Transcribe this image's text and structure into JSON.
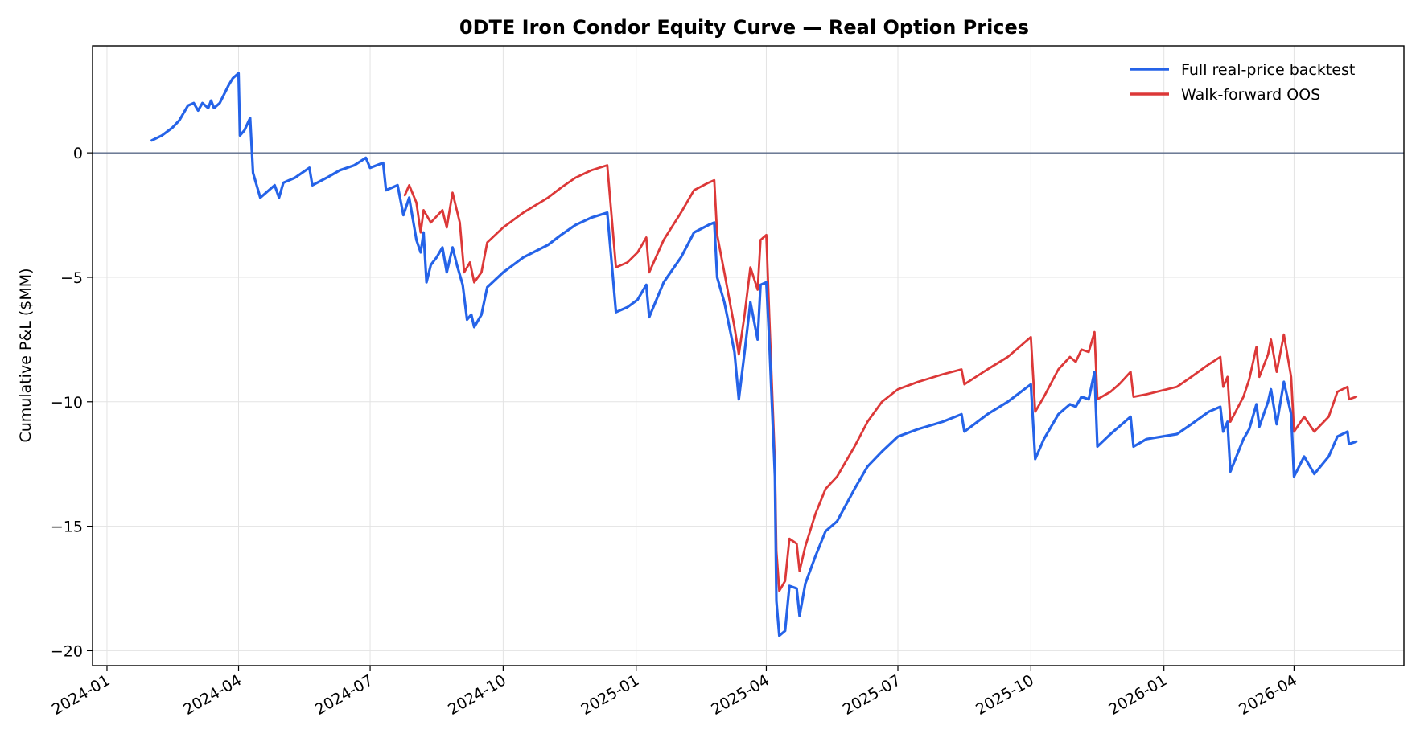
{
  "chart_data": {
    "type": "line",
    "title": "0DTE Iron Condor Equity Curve — Real Option Prices",
    "xlabel": "",
    "ylabel": "Cumulative P&L ($MM)",
    "xlim": [
      "2023-12-22",
      "2026-06-16"
    ],
    "ylim": [
      -20.6,
      4.3
    ],
    "x_ticks": [
      "2024-01",
      "2024-04",
      "2024-07",
      "2024-10",
      "2025-01",
      "2025-04",
      "2025-07",
      "2025-10",
      "2026-01",
      "2026-04"
    ],
    "y_ticks": [
      0,
      -5,
      -10,
      -15,
      -20
    ],
    "y_tick_labels": [
      "0",
      "−5",
      "−10",
      "−15",
      "−20"
    ],
    "grid": true,
    "reference_line": 0,
    "reference_line_color": "#5a6a88",
    "legend_position": "top-right",
    "series": [
      {
        "name": "Full real-price backtest",
        "color": "#2563e8",
        "points": [
          [
            "2024-02-01",
            0.5
          ],
          [
            "2024-02-08",
            0.7
          ],
          [
            "2024-02-15",
            1.0
          ],
          [
            "2024-02-20",
            1.3
          ],
          [
            "2024-02-26",
            1.9
          ],
          [
            "2024-03-01",
            2.0
          ],
          [
            "2024-03-04",
            1.7
          ],
          [
            "2024-03-07",
            2.0
          ],
          [
            "2024-03-11",
            1.8
          ],
          [
            "2024-03-13",
            2.1
          ],
          [
            "2024-03-15",
            1.8
          ],
          [
            "2024-03-19",
            2.0
          ],
          [
            "2024-03-25",
            2.7
          ],
          [
            "2024-03-28",
            3.0
          ],
          [
            "2024-04-01",
            3.2
          ],
          [
            "2024-04-02",
            0.7
          ],
          [
            "2024-04-05",
            0.9
          ],
          [
            "2024-04-09",
            1.4
          ],
          [
            "2024-04-11",
            -0.8
          ],
          [
            "2024-04-16",
            -1.8
          ],
          [
            "2024-04-22",
            -1.5
          ],
          [
            "2024-04-26",
            -1.3
          ],
          [
            "2024-04-29",
            -1.8
          ],
          [
            "2024-05-02",
            -1.2
          ],
          [
            "2024-05-10",
            -1.0
          ],
          [
            "2024-05-20",
            -0.6
          ],
          [
            "2024-05-22",
            -1.3
          ],
          [
            "2024-06-01",
            -1.0
          ],
          [
            "2024-06-10",
            -0.7
          ],
          [
            "2024-06-20",
            -0.5
          ],
          [
            "2024-06-28",
            -0.2
          ],
          [
            "2024-07-01",
            -0.6
          ],
          [
            "2024-07-10",
            -0.4
          ],
          [
            "2024-07-12",
            -1.5
          ],
          [
            "2024-07-20",
            -1.3
          ],
          [
            "2024-07-24",
            -2.5
          ],
          [
            "2024-07-28",
            -1.8
          ],
          [
            "2024-08-02",
            -3.5
          ],
          [
            "2024-08-05",
            -4.0
          ],
          [
            "2024-08-07",
            -3.2
          ],
          [
            "2024-08-09",
            -5.2
          ],
          [
            "2024-08-12",
            -4.5
          ],
          [
            "2024-08-16",
            -4.2
          ],
          [
            "2024-08-20",
            -3.8
          ],
          [
            "2024-08-23",
            -4.8
          ],
          [
            "2024-08-27",
            -3.8
          ],
          [
            "2024-08-30",
            -4.5
          ],
          [
            "2024-09-03",
            -5.3
          ],
          [
            "2024-09-06",
            -6.7
          ],
          [
            "2024-09-09",
            -6.5
          ],
          [
            "2024-09-11",
            -7.0
          ],
          [
            "2024-09-16",
            -6.5
          ],
          [
            "2024-09-20",
            -5.4
          ],
          [
            "2024-10-01",
            -4.8
          ],
          [
            "2024-10-15",
            -4.2
          ],
          [
            "2024-11-01",
            -3.7
          ],
          [
            "2024-11-10",
            -3.3
          ],
          [
            "2024-11-20",
            -2.9
          ],
          [
            "2024-12-01",
            -2.6
          ],
          [
            "2024-12-12",
            -2.4
          ],
          [
            "2024-12-18",
            -6.4
          ],
          [
            "2024-12-26",
            -6.2
          ],
          [
            "2025-01-02",
            -5.9
          ],
          [
            "2025-01-08",
            -5.3
          ],
          [
            "2025-01-10",
            -6.6
          ],
          [
            "2025-01-20",
            -5.2
          ],
          [
            "2025-02-01",
            -4.2
          ],
          [
            "2025-02-10",
            -3.2
          ],
          [
            "2025-02-20",
            -2.9
          ],
          [
            "2025-02-24",
            -2.8
          ],
          [
            "2025-02-26",
            -5.0
          ],
          [
            "2025-03-03",
            -6.0
          ],
          [
            "2025-03-10",
            -8.0
          ],
          [
            "2025-03-13",
            -9.9
          ],
          [
            "2025-03-17",
            -8.0
          ],
          [
            "2025-03-21",
            -6.0
          ],
          [
            "2025-03-26",
            -7.5
          ],
          [
            "2025-03-28",
            -5.3
          ],
          [
            "2025-04-01",
            -5.2
          ],
          [
            "2025-04-03",
            -7.5
          ],
          [
            "2025-04-07",
            -13.0
          ],
          [
            "2025-04-08",
            -18.0
          ],
          [
            "2025-04-10",
            -19.4
          ],
          [
            "2025-04-14",
            -19.2
          ],
          [
            "2025-04-17",
            -17.4
          ],
          [
            "2025-04-22",
            -17.5
          ],
          [
            "2025-04-24",
            -18.6
          ],
          [
            "2025-04-28",
            -17.3
          ],
          [
            "2025-05-05",
            -16.2
          ],
          [
            "2025-05-12",
            -15.2
          ],
          [
            "2025-05-20",
            -14.8
          ],
          [
            "2025-06-01",
            -13.5
          ],
          [
            "2025-06-10",
            -12.6
          ],
          [
            "2025-06-20",
            -12.0
          ],
          [
            "2025-07-01",
            -11.4
          ],
          [
            "2025-07-15",
            -11.1
          ],
          [
            "2025-08-01",
            -10.8
          ],
          [
            "2025-08-14",
            -10.5
          ],
          [
            "2025-08-16",
            -11.2
          ],
          [
            "2025-09-01",
            -10.5
          ],
          [
            "2025-09-15",
            -10.0
          ],
          [
            "2025-10-01",
            -9.3
          ],
          [
            "2025-10-04",
            -12.3
          ],
          [
            "2025-10-10",
            -11.5
          ],
          [
            "2025-10-20",
            -10.5
          ],
          [
            "2025-10-28",
            -10.1
          ],
          [
            "2025-11-01",
            -10.2
          ],
          [
            "2025-11-05",
            -9.8
          ],
          [
            "2025-11-10",
            -9.9
          ],
          [
            "2025-11-14",
            -8.8
          ],
          [
            "2025-11-16",
            -11.8
          ],
          [
            "2025-11-25",
            -11.3
          ],
          [
            "2025-12-01",
            -11.0
          ],
          [
            "2025-12-09",
            -10.6
          ],
          [
            "2025-12-11",
            -11.8
          ],
          [
            "2025-12-20",
            -11.5
          ],
          [
            "2026-01-10",
            -11.3
          ],
          [
            "2026-01-20",
            -10.9
          ],
          [
            "2026-02-01",
            -10.4
          ],
          [
            "2026-02-09",
            -10.2
          ],
          [
            "2026-02-11",
            -11.2
          ],
          [
            "2026-02-14",
            -10.8
          ],
          [
            "2026-02-16",
            -12.8
          ],
          [
            "2026-02-25",
            -11.5
          ],
          [
            "2026-03-01",
            -11.1
          ],
          [
            "2026-03-06",
            -10.1
          ],
          [
            "2026-03-08",
            -11.0
          ],
          [
            "2026-03-14",
            -10.0
          ],
          [
            "2026-03-16",
            -9.5
          ],
          [
            "2026-03-20",
            -10.9
          ],
          [
            "2026-03-25",
            -9.2
          ],
          [
            "2026-03-30",
            -10.5
          ],
          [
            "2026-04-01",
            -13.0
          ],
          [
            "2026-04-08",
            -12.2
          ],
          [
            "2026-04-15",
            -12.9
          ],
          [
            "2026-04-25",
            -12.2
          ],
          [
            "2026-05-01",
            -11.4
          ],
          [
            "2026-05-08",
            -11.2
          ],
          [
            "2026-05-09",
            -11.7
          ],
          [
            "2026-05-14",
            -11.6
          ]
        ]
      },
      {
        "name": "Walk-forward OOS",
        "color": "#dc3838",
        "points": [
          [
            "2024-07-25",
            -1.7
          ],
          [
            "2024-07-28",
            -1.3
          ],
          [
            "2024-08-02",
            -2.0
          ],
          [
            "2024-08-05",
            -3.2
          ],
          [
            "2024-08-07",
            -2.3
          ],
          [
            "2024-08-12",
            -2.8
          ],
          [
            "2024-08-20",
            -2.3
          ],
          [
            "2024-08-23",
            -3.0
          ],
          [
            "2024-08-27",
            -1.6
          ],
          [
            "2024-09-01",
            -2.8
          ],
          [
            "2024-09-04",
            -4.8
          ],
          [
            "2024-09-08",
            -4.4
          ],
          [
            "2024-09-11",
            -5.2
          ],
          [
            "2024-09-16",
            -4.8
          ],
          [
            "2024-09-20",
            -3.6
          ],
          [
            "2024-10-01",
            -3.0
          ],
          [
            "2024-10-15",
            -2.4
          ],
          [
            "2024-11-01",
            -1.8
          ],
          [
            "2024-11-10",
            -1.4
          ],
          [
            "2024-11-20",
            -1.0
          ],
          [
            "2024-12-01",
            -0.7
          ],
          [
            "2024-12-12",
            -0.5
          ],
          [
            "2024-12-18",
            -4.6
          ],
          [
            "2024-12-26",
            -4.4
          ],
          [
            "2025-01-02",
            -4.0
          ],
          [
            "2025-01-08",
            -3.4
          ],
          [
            "2025-01-10",
            -4.8
          ],
          [
            "2025-01-20",
            -3.5
          ],
          [
            "2025-02-01",
            -2.4
          ],
          [
            "2025-02-10",
            -1.5
          ],
          [
            "2025-02-20",
            -1.2
          ],
          [
            "2025-02-24",
            -1.1
          ],
          [
            "2025-02-26",
            -3.3
          ],
          [
            "2025-03-03",
            -4.8
          ],
          [
            "2025-03-10",
            -7.0
          ],
          [
            "2025-03-13",
            -8.1
          ],
          [
            "2025-03-17",
            -6.5
          ],
          [
            "2025-03-21",
            -4.6
          ],
          [
            "2025-03-26",
            -5.5
          ],
          [
            "2025-03-28",
            -3.5
          ],
          [
            "2025-04-01",
            -3.3
          ],
          [
            "2025-04-03",
            -6.5
          ],
          [
            "2025-04-07",
            -12.5
          ],
          [
            "2025-04-08",
            -16.0
          ],
          [
            "2025-04-10",
            -17.6
          ],
          [
            "2025-04-14",
            -17.2
          ],
          [
            "2025-04-17",
            -15.5
          ],
          [
            "2025-04-22",
            -15.7
          ],
          [
            "2025-04-24",
            -16.8
          ],
          [
            "2025-04-28",
            -15.8
          ],
          [
            "2025-05-05",
            -14.5
          ],
          [
            "2025-05-12",
            -13.5
          ],
          [
            "2025-05-20",
            -13.0
          ],
          [
            "2025-06-01",
            -11.8
          ],
          [
            "2025-06-10",
            -10.8
          ],
          [
            "2025-06-20",
            -10.0
          ],
          [
            "2025-07-01",
            -9.5
          ],
          [
            "2025-07-15",
            -9.2
          ],
          [
            "2025-08-01",
            -8.9
          ],
          [
            "2025-08-14",
            -8.7
          ],
          [
            "2025-08-16",
            -9.3
          ],
          [
            "2025-09-01",
            -8.7
          ],
          [
            "2025-09-15",
            -8.2
          ],
          [
            "2025-10-01",
            -7.4
          ],
          [
            "2025-10-04",
            -10.4
          ],
          [
            "2025-10-10",
            -9.8
          ],
          [
            "2025-10-20",
            -8.7
          ],
          [
            "2025-10-28",
            -8.2
          ],
          [
            "2025-11-01",
            -8.4
          ],
          [
            "2025-11-05",
            -7.9
          ],
          [
            "2025-11-10",
            -8.0
          ],
          [
            "2025-11-14",
            -7.2
          ],
          [
            "2025-11-16",
            -9.9
          ],
          [
            "2025-11-25",
            -9.6
          ],
          [
            "2025-12-01",
            -9.3
          ],
          [
            "2025-12-09",
            -8.8
          ],
          [
            "2025-12-11",
            -9.8
          ],
          [
            "2025-12-20",
            -9.7
          ],
          [
            "2026-01-10",
            -9.4
          ],
          [
            "2026-01-20",
            -9.0
          ],
          [
            "2026-02-01",
            -8.5
          ],
          [
            "2026-02-09",
            -8.2
          ],
          [
            "2026-02-11",
            -9.4
          ],
          [
            "2026-02-14",
            -9.0
          ],
          [
            "2026-02-16",
            -10.8
          ],
          [
            "2026-02-25",
            -9.8
          ],
          [
            "2026-03-01",
            -9.1
          ],
          [
            "2026-03-06",
            -7.8
          ],
          [
            "2026-03-08",
            -9.0
          ],
          [
            "2026-03-14",
            -8.1
          ],
          [
            "2026-03-16",
            -7.5
          ],
          [
            "2026-03-20",
            -8.8
          ],
          [
            "2026-03-25",
            -7.3
          ],
          [
            "2026-03-30",
            -9.0
          ],
          [
            "2026-04-01",
            -11.2
          ],
          [
            "2026-04-08",
            -10.6
          ],
          [
            "2026-04-15",
            -11.2
          ],
          [
            "2026-04-25",
            -10.6
          ],
          [
            "2026-05-01",
            -9.6
          ],
          [
            "2026-05-08",
            -9.4
          ],
          [
            "2026-05-09",
            -9.9
          ],
          [
            "2026-05-14",
            -9.8
          ]
        ]
      }
    ]
  }
}
